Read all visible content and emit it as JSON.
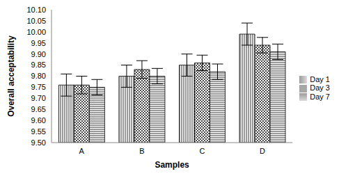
{
  "chart_data": {
    "type": "bar",
    "x_label": "Samples",
    "y_label": "Overall acceptability",
    "categories": [
      "A",
      "B",
      "C",
      "D"
    ],
    "series": [
      {
        "name": "Day 1",
        "color": "#000000",
        "values": [
          9.76,
          9.8,
          9.85,
          9.99
        ],
        "error": [
          0.05,
          0.05,
          0.05,
          0.05
        ]
      },
      {
        "name": "Day 3",
        "color": "#000000",
        "values": [
          9.76,
          9.83,
          9.86,
          9.94
        ],
        "error": [
          0.04,
          0.04,
          0.035,
          0.035
        ]
      },
      {
        "name": "Day 7",
        "color": "#000000",
        "values": [
          9.75,
          9.8,
          9.82,
          9.91
        ],
        "error": [
          0.035,
          0.035,
          0.035,
          0.035
        ]
      }
    ],
    "ylim": [
      9.5,
      10.1
    ],
    "yticks": [
      {
        "value": 9.5,
        "label": "9.50"
      },
      9.55,
      {
        "value": 9.6,
        "label": "9.60"
      },
      9.65,
      {
        "value": 9.7,
        "label": "9.70"
      },
      9.75,
      {
        "value": 9.8,
        "label": "9.80"
      },
      9.85,
      {
        "value": 9.9,
        "label": "9.90"
      },
      9.95,
      {
        "value": 10,
        "label": "10.00"
      },
      10.05,
      {
        "value": 10.1,
        "label": "10.10"
      }
    ],
    "grid": false,
    "legend": "right"
  }
}
